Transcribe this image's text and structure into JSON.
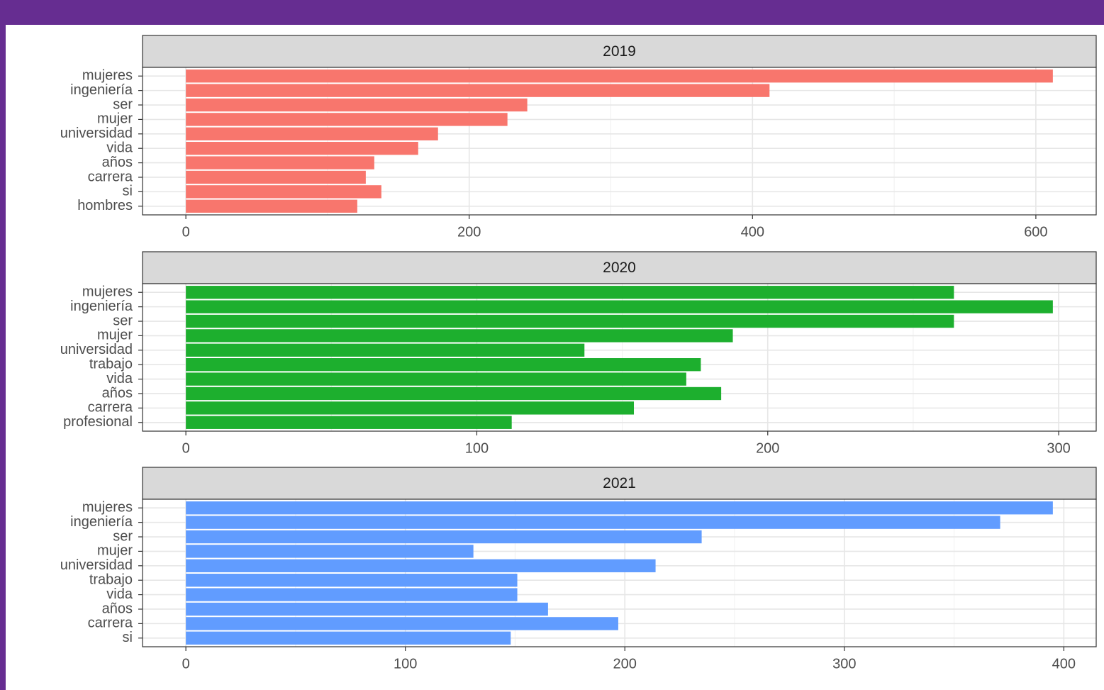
{
  "chart_data": [
    {
      "type": "bar",
      "orientation": "horizontal",
      "title": "2019",
      "categories": [
        "mujeres",
        "ingeniería",
        "ser",
        "mujer",
        "universidad",
        "vida",
        "años",
        "carrera",
        "si",
        "hombres"
      ],
      "values": [
        612,
        412,
        241,
        227,
        178,
        164,
        133,
        127,
        138,
        121
      ],
      "color": "#f8766d",
      "xlim": [
        -30.6,
        642.6
      ],
      "xticks": [
        0,
        200,
        400,
        600
      ],
      "grid": true
    },
    {
      "type": "bar",
      "orientation": "horizontal",
      "title": "2020",
      "categories": [
        "mujeres",
        "ingeniería",
        "ser",
        "mujer",
        "universidad",
        "trabajo",
        "vida",
        "años",
        "carrera",
        "profesional"
      ],
      "values": [
        264,
        298,
        264,
        188,
        137,
        177,
        172,
        184,
        154,
        112
      ],
      "color": "#1daf2e",
      "xlim": [
        -14.9,
        312.9
      ],
      "xticks": [
        0,
        100,
        200,
        300
      ],
      "grid": true
    },
    {
      "type": "bar",
      "orientation": "horizontal",
      "title": "2021",
      "categories": [
        "mujeres",
        "ingeniería",
        "ser",
        "mujer",
        "universidad",
        "trabajo",
        "vida",
        "años",
        "carrera",
        "si"
      ],
      "values": [
        395,
        371,
        235,
        131,
        214,
        151,
        151,
        165,
        197,
        148
      ],
      "color": "#619cff",
      "xlim": [
        -19.75,
        414.75
      ],
      "xticks": [
        0,
        100,
        200,
        300,
        400
      ],
      "grid": true
    }
  ]
}
